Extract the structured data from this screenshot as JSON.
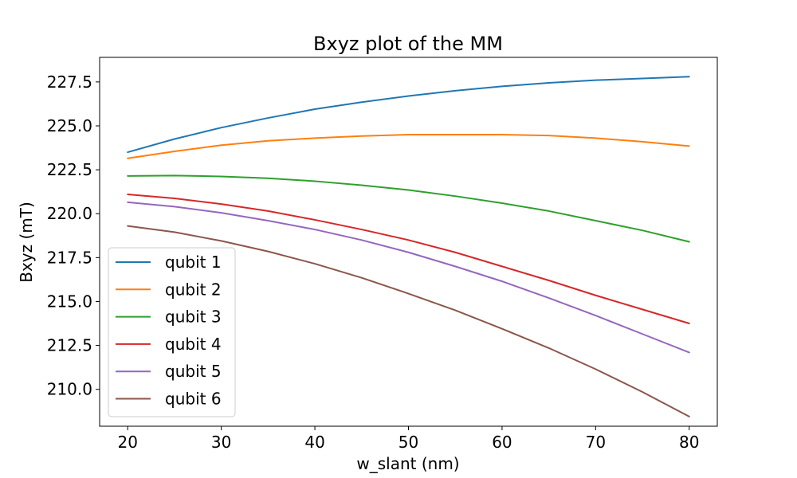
{
  "chart_data": {
    "type": "line",
    "title": "Bxyz plot of the MM",
    "xlabel": "w_slant (nm)",
    "ylabel": "Bxyz (mT)",
    "xlim": [
      17,
      83
    ],
    "ylim": [
      207.9,
      228.9
    ],
    "xticks": [
      20,
      30,
      40,
      50,
      60,
      70,
      80
    ],
    "xtick_labels": [
      "20",
      "30",
      "40",
      "50",
      "60",
      "70",
      "80"
    ],
    "yticks": [
      210.0,
      212.5,
      215.0,
      217.5,
      220.0,
      222.5,
      225.0,
      227.5
    ],
    "ytick_labels": [
      "210.0",
      "212.5",
      "215.0",
      "217.5",
      "220.0",
      "222.5",
      "225.0",
      "227.5"
    ],
    "grid": false,
    "legend_position": "lower-left",
    "x": [
      20,
      25,
      30,
      35,
      40,
      45,
      50,
      55,
      60,
      65,
      70,
      75,
      80
    ],
    "series": [
      {
        "name": "qubit 1",
        "color": "#1f77b4",
        "values": [
          223.5,
          224.25,
          224.9,
          225.45,
          225.95,
          226.35,
          226.7,
          227.0,
          227.25,
          227.45,
          227.6,
          227.7,
          227.8
        ]
      },
      {
        "name": "qubit 2",
        "color": "#ff7f0e",
        "values": [
          223.15,
          223.55,
          223.9,
          224.15,
          224.3,
          224.42,
          224.5,
          224.5,
          224.5,
          224.45,
          224.3,
          224.1,
          223.85
        ]
      },
      {
        "name": "qubit 3",
        "color": "#2ca02c",
        "values": [
          222.15,
          222.17,
          222.12,
          222.02,
          221.85,
          221.62,
          221.35,
          221.0,
          220.6,
          220.15,
          219.6,
          219.05,
          218.4
        ]
      },
      {
        "name": "qubit 4",
        "color": "#d62728",
        "values": [
          221.1,
          220.87,
          220.55,
          220.15,
          219.65,
          219.1,
          218.5,
          217.8,
          217.0,
          216.2,
          215.35,
          214.55,
          213.75
        ]
      },
      {
        "name": "qubit 5",
        "color": "#9467bd",
        "values": [
          220.65,
          220.4,
          220.05,
          219.6,
          219.1,
          218.5,
          217.8,
          217.0,
          216.15,
          215.2,
          214.2,
          213.15,
          212.1
        ]
      },
      {
        "name": "qubit 6",
        "color": "#8c564b",
        "values": [
          219.3,
          218.95,
          218.45,
          217.85,
          217.15,
          216.35,
          215.45,
          214.5,
          213.45,
          212.35,
          211.15,
          209.85,
          208.45
        ]
      }
    ]
  }
}
